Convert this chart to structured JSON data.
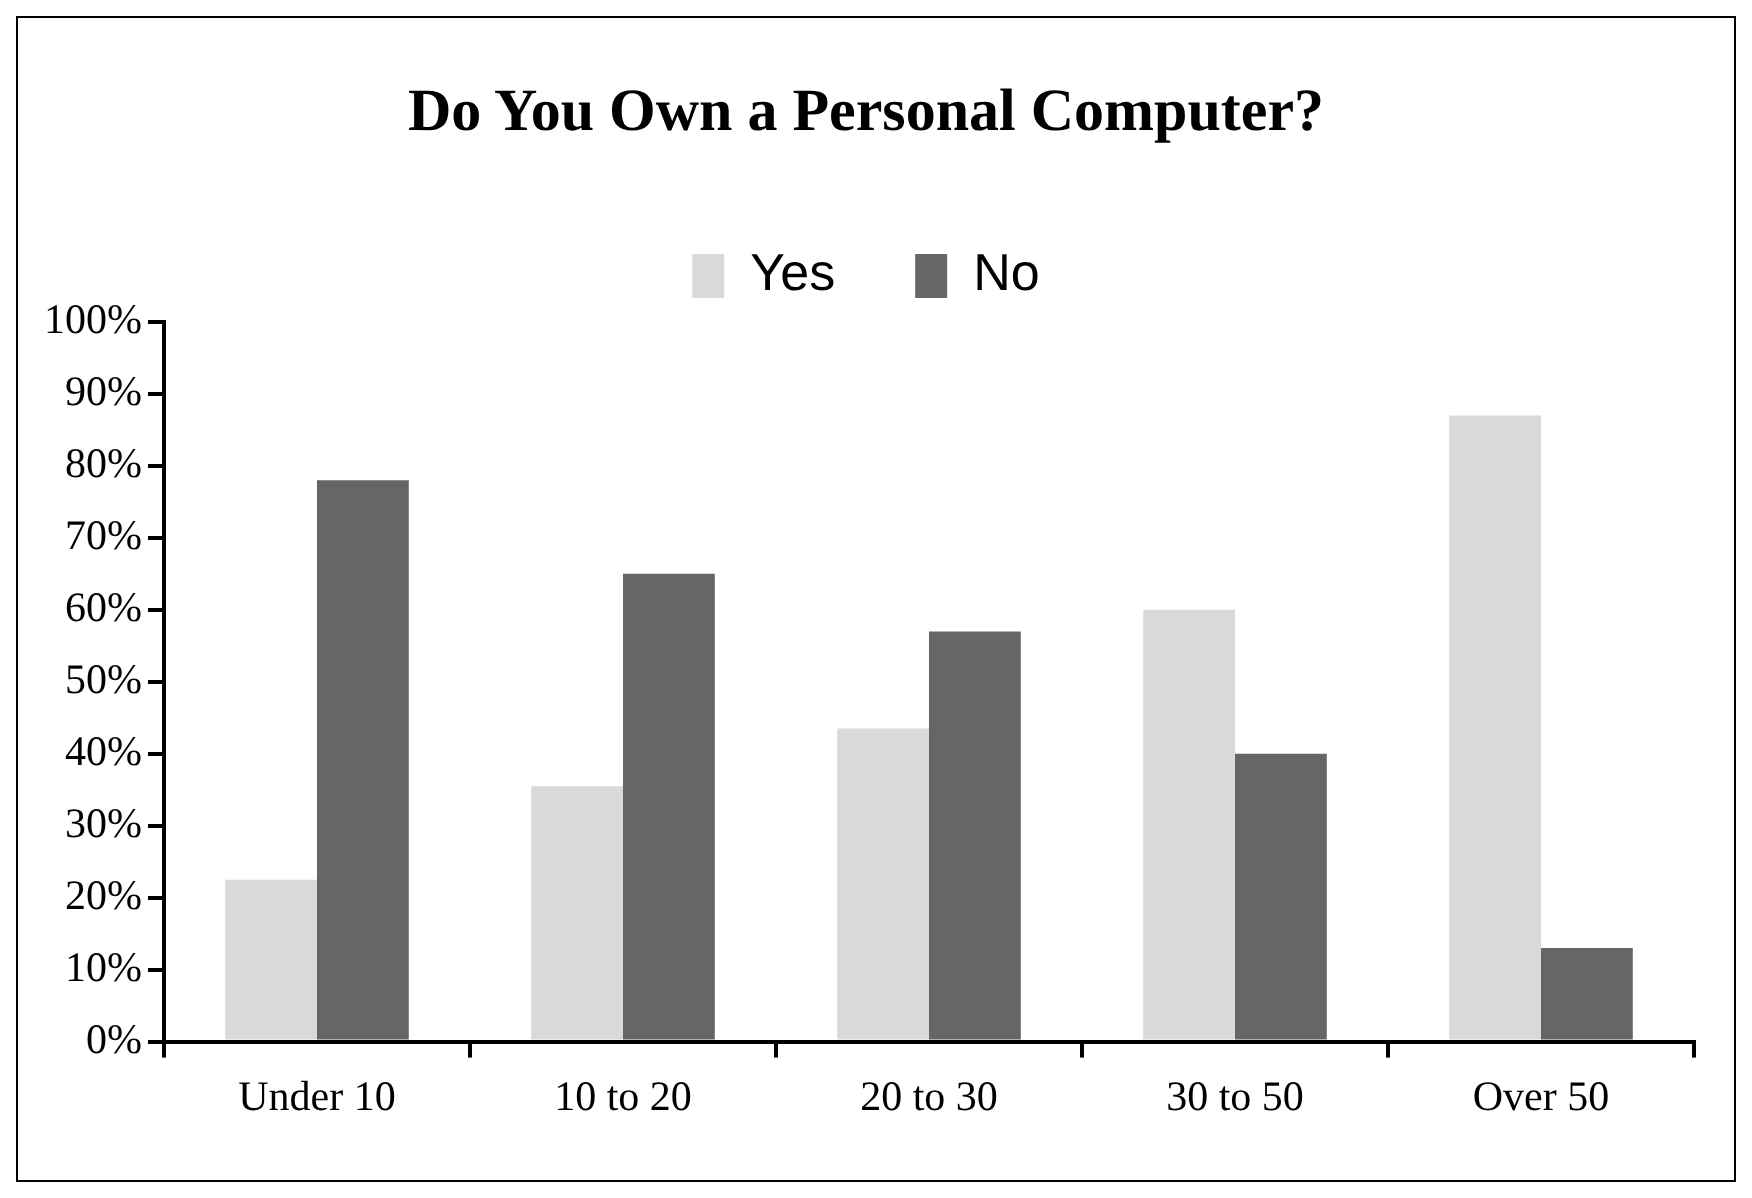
{
  "chart_data": {
    "type": "bar",
    "title": "Do You Own a Personal Computer?",
    "categories": [
      "Under 10",
      "10 to 20",
      "20 to 30",
      "30 to 50",
      "Over 50"
    ],
    "series": [
      {
        "name": "Yes",
        "color": "#d9d9d9",
        "values": [
          22.5,
          35.5,
          43.5,
          60,
          87
        ]
      },
      {
        "name": "No",
        "color": "#666666",
        "values": [
          78,
          65,
          57,
          40,
          13
        ]
      }
    ],
    "ylim": [
      0,
      100
    ],
    "yticks": [
      {
        "value": 0,
        "label": "0%"
      },
      {
        "value": 10,
        "label": "10%"
      },
      {
        "value": 20,
        "label": "20%"
      },
      {
        "value": 30,
        "label": "30%"
      },
      {
        "value": 40,
        "label": "40%"
      },
      {
        "value": 50,
        "label": "50%"
      },
      {
        "value": 60,
        "label": "60%"
      },
      {
        "value": 70,
        "label": "70%"
      },
      {
        "value": 80,
        "label": "80%"
      },
      {
        "value": 90,
        "label": "90%"
      },
      {
        "value": 100,
        "label": "100%"
      }
    ],
    "grid": false,
    "legend": "top"
  }
}
